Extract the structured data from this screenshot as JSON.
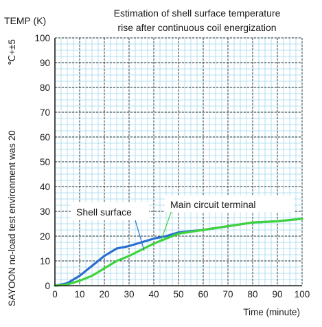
{
  "chart_data": {
    "type": "line",
    "title_lines": [
      "Estimation of shell surface temperature",
      "rise after continuous coil energization"
    ],
    "ylabel": "TEMP (K)",
    "xlabel": "Time (minute)",
    "side_note_main": "SAYOON no-load test environment was 20",
    "side_note_extra": "℃+±5",
    "xlim": [
      0,
      100
    ],
    "ylim": [
      0,
      100
    ],
    "x_ticks": [
      0,
      10,
      20,
      30,
      40,
      50,
      60,
      70,
      80,
      90,
      100
    ],
    "y_ticks": [
      0,
      10,
      20,
      30,
      40,
      50,
      60,
      70,
      80,
      90,
      100
    ],
    "minor_step": 2.5,
    "grid": true,
    "series": [
      {
        "name": "Shell surface",
        "color": "#2a6fcf",
        "x": [
          0,
          5,
          10,
          15,
          20,
          25,
          30,
          35,
          40,
          45,
          50,
          60,
          70,
          80,
          90,
          100
        ],
        "y": [
          0,
          1,
          4,
          8,
          12,
          15,
          16,
          17.5,
          19,
          20,
          21.5,
          22.5,
          24,
          25.5,
          26,
          27
        ]
      },
      {
        "name": "Main circuit terminal",
        "color": "#3fd33c",
        "x": [
          0,
          5,
          10,
          15,
          20,
          25,
          30,
          35,
          40,
          45,
          50,
          60,
          70,
          80,
          90,
          100
        ],
        "y": [
          0,
          0.5,
          2,
          4,
          7,
          10,
          12,
          14.5,
          17,
          19,
          21,
          22.5,
          24,
          25.5,
          26,
          27
        ]
      }
    ],
    "colors": {
      "grid_minor": "#9fd7ec",
      "grid_major": "#2a2a2a",
      "axis": "#1a1a1a"
    }
  }
}
